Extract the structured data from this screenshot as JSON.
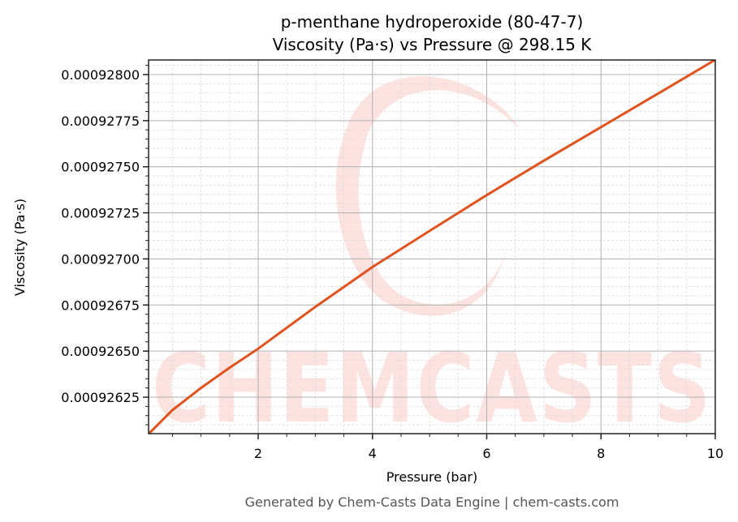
{
  "title": {
    "line1": "p-menthane hydroperoxide (80-47-7)",
    "line2": "Viscosity (Pa·s) vs Pressure @ 298.15 K"
  },
  "footer": "Generated by Chem-Casts Data Engine | chem-casts.com",
  "watermark": "CHEMCASTS",
  "colors": {
    "line": "#e0531e",
    "watermark": "#fde3e0",
    "major_grid": "#b0b0b0",
    "minor_grid": "#dddddd",
    "axes": "#222222",
    "footer": "#555555"
  },
  "chart_data": {
    "type": "line",
    "title": "p-menthane hydroperoxide (80-47-7)\nViscosity (Pa·s) vs Pressure @ 298.15 K",
    "xlabel": "Pressure (bar)",
    "ylabel": "Viscosity (Pa·s)",
    "xlim": [
      0.08,
      10
    ],
    "ylim": [
      0.00092605,
      0.00092808
    ],
    "xticks": [
      2,
      4,
      6,
      8,
      10
    ],
    "xtick_labels": [
      "2",
      "4",
      "6",
      "8",
      "10"
    ],
    "yticks": [
      0.00092625,
      0.0009265,
      0.00092675,
      0.000927,
      0.00092725,
      0.0009275,
      0.00092775,
      0.000928
    ],
    "ytick_labels": [
      "0.00092625",
      "0.00092650",
      "0.00092675",
      "0.00092700",
      "0.00092725",
      "0.00092750",
      "0.00092775",
      "0.00092800"
    ],
    "grid": {
      "major": true,
      "minor": true
    },
    "legend": null,
    "series": [
      {
        "name": "Viscosity",
        "color": "#e0531e",
        "x": [
          0.08,
          0.5,
          1,
          1.5,
          2,
          3,
          4,
          5,
          6,
          7,
          8,
          9,
          10
        ],
        "y": [
          0.00092605,
          0.00092618,
          0.0009263,
          0.00092641,
          0.000926513,
          0.00092674,
          0.000926956,
          0.000927152,
          0.000927346,
          0.000927533,
          0.000927715,
          0.000927897,
          0.00092808
        ]
      }
    ]
  }
}
